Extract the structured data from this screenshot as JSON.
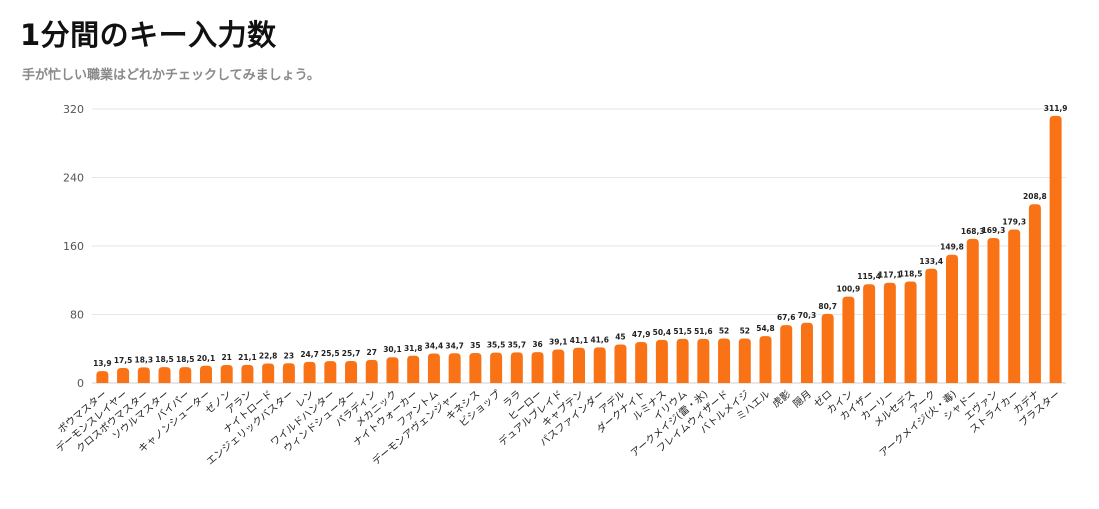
{
  "header": {
    "title": "1分間のキー入力数",
    "subtitle": "手が忙しい職業はどれかチェックしてみましょう。"
  },
  "colors": {
    "bar": "#f97316",
    "grid": "#e6e6e6",
    "axis": "#cfcfcf"
  },
  "chart_data": {
    "type": "bar",
    "categories": [
      "ボウマスター",
      "デーモンスレイヤー",
      "クロスボウマスター",
      "ソウルマスター",
      "バイパー",
      "キャノンシューター",
      "ゼノン",
      "アラン",
      "ナイトロード",
      "エンジェリックバスター",
      "レン",
      "ワイルドハンター",
      "ウィンドシューター",
      "パラディン",
      "メカニック",
      "ナイトウォーカー",
      "ファントム",
      "デーモンアヴェンジャー",
      "キネシス",
      "ビショップ",
      "ララ",
      "ヒーロー",
      "デュアルブレイド",
      "キャプテン",
      "パスファインダー",
      "アデル",
      "ダークナイト",
      "ルミナス",
      "イリウム",
      "アークメイジ(雷・氷)",
      "フレイムウィザード",
      "バトルメイジ",
      "ミハエル",
      "虎影",
      "隠月",
      "ゼロ",
      "カイン",
      "カイザー",
      "カーリー",
      "メルセデス",
      "アーク",
      "アークメイジ(火・毒)",
      "シャドー",
      "エヴァン",
      "ストライカー",
      "カデナ",
      "ブラスター"
    ],
    "values": [
      13.9,
      17.5,
      18.3,
      18.5,
      18.5,
      20.1,
      21,
      21.1,
      22.8,
      23,
      24.7,
      25.5,
      25.7,
      27,
      30.1,
      31.8,
      34.4,
      34.7,
      35,
      35.5,
      35.7,
      36,
      39.1,
      41.1,
      41.6,
      45,
      47.9,
      50.4,
      51.5,
      51.6,
      52,
      52,
      54.8,
      67.6,
      70.3,
      80.7,
      100.9,
      115.4,
      117.1,
      118.5,
      133.4,
      149.8,
      168.3,
      169.3,
      179.3,
      208.8,
      311.9
    ],
    "value_labels": [
      "13,9",
      "17,5",
      "18,3",
      "18,5",
      "18,5",
      "20,1",
      "21",
      "21,1",
      "22,8",
      "23",
      "24,7",
      "25,5",
      "25,7",
      "27",
      "30,1",
      "31,8",
      "34,4",
      "34,7",
      "35",
      "35,5",
      "35,7",
      "36",
      "39,1",
      "41,1",
      "41,6",
      "45",
      "47,9",
      "50,4",
      "51,5",
      "51,6",
      "52",
      "52",
      "54,8",
      "67,6",
      "70,3",
      "80,7",
      "100,9",
      "115,4",
      "117,1",
      "118,5",
      "133,4",
      "149,8",
      "168,3",
      "169,3",
      "179,3",
      "208,8",
      "311,9"
    ],
    "yticks": [
      0,
      80,
      160,
      240,
      320
    ],
    "ylim": [
      0,
      320
    ],
    "grid": true,
    "legend": "none"
  }
}
